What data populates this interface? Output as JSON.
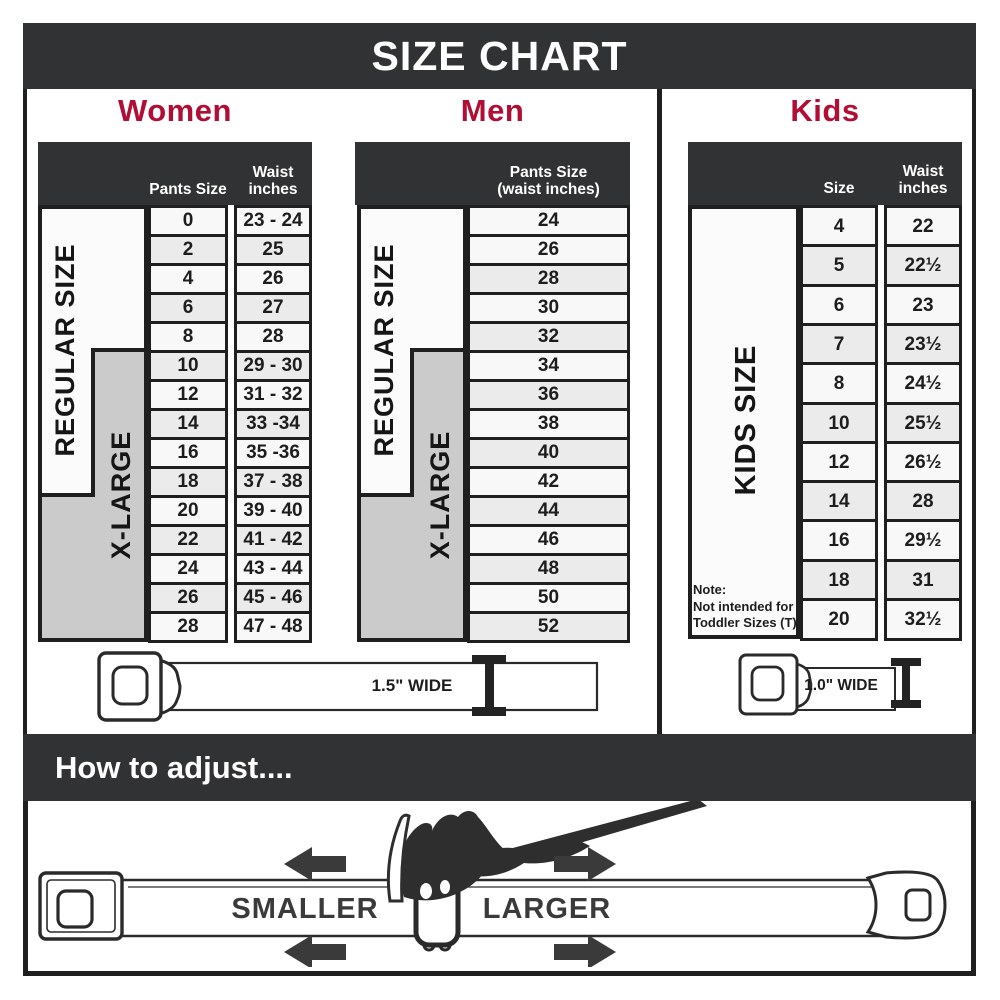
{
  "title": "SIZE CHART",
  "sections": {
    "women": {
      "title": "Women",
      "col1_header": "Pants Size",
      "col2_header_line1": "Waist",
      "col2_header_line2": "inches",
      "side_label_regular": "REGULAR SIZE",
      "side_label_xlarge": "X-LARGE",
      "rows": [
        {
          "size": "0",
          "waist": "23 - 24"
        },
        {
          "size": "2",
          "waist": "25"
        },
        {
          "size": "4",
          "waist": "26"
        },
        {
          "size": "6",
          "waist": "27"
        },
        {
          "size": "8",
          "waist": "28"
        },
        {
          "size": "10",
          "waist": "29 - 30"
        },
        {
          "size": "12",
          "waist": "31 - 32"
        },
        {
          "size": "14",
          "waist": "33 -34"
        },
        {
          "size": "16",
          "waist": "35 -36"
        },
        {
          "size": "18",
          "waist": "37 - 38"
        },
        {
          "size": "20",
          "waist": "39 - 40"
        },
        {
          "size": "22",
          "waist": "41 - 42"
        },
        {
          "size": "24",
          "waist": "43 - 44"
        },
        {
          "size": "26",
          "waist": "45 - 46"
        },
        {
          "size": "28",
          "waist": "47 - 48"
        }
      ]
    },
    "men": {
      "title": "Men",
      "col_header_line1": "Pants Size",
      "col_header_line2": "(waist inches)",
      "side_label_regular": "REGULAR SIZE",
      "side_label_xlarge": "X-LARGE",
      "rows": [
        "24",
        "26",
        "28",
        "30",
        "32",
        "34",
        "36",
        "38",
        "40",
        "42",
        "44",
        "46",
        "48",
        "50",
        "52"
      ]
    },
    "kids": {
      "title": "Kids",
      "col1_header": "Size",
      "col2_header_line1": "Waist",
      "col2_header_line2": "inches",
      "side_label": "KIDS SIZE",
      "note_lines": [
        "Note:",
        "Not intended for",
        "Toddler Sizes (T)"
      ],
      "rows": [
        {
          "size": "4",
          "waist": "22"
        },
        {
          "size": "5",
          "waist": "22½"
        },
        {
          "size": "6",
          "waist": "23"
        },
        {
          "size": "7",
          "waist": "23½"
        },
        {
          "size": "8",
          "waist": "24½"
        },
        {
          "size": "10",
          "waist": "25½"
        },
        {
          "size": "12",
          "waist": "26½"
        },
        {
          "size": "14",
          "waist": "28"
        },
        {
          "size": "16",
          "waist": "29½"
        },
        {
          "size": "18",
          "waist": "31"
        },
        {
          "size": "20",
          "waist": "32½"
        }
      ]
    }
  },
  "belts": {
    "adult_width_label": "1.5\" WIDE",
    "kids_width_label": "1.0\" WIDE"
  },
  "adjust": {
    "title": "How to adjust....",
    "smaller_label": "SMALLER",
    "larger_label": "LARGER"
  },
  "colors": {
    "accent": "#b00e34",
    "band": "#313233",
    "ink": "#1f1f1f",
    "row": "#f8f8f8",
    "rowalt": "#ebebeb",
    "sidegray": "#cbcbcb",
    "line": "#2a2a2a"
  }
}
